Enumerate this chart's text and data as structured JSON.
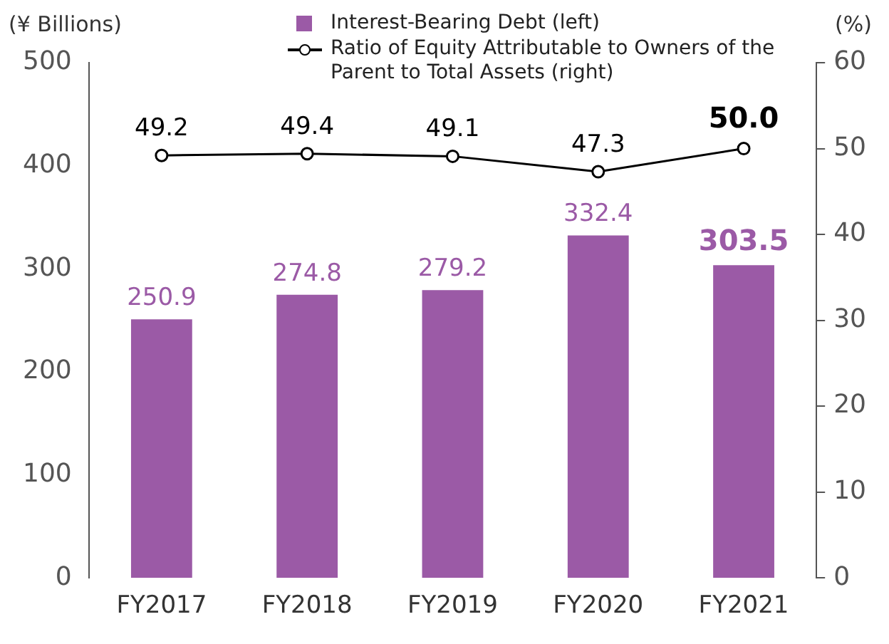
{
  "chart_data": {
    "type": "bar",
    "ylabel": "(¥ Billions)",
    "y2label": "(%)",
    "categories": [
      "FY2017",
      "FY2018",
      "FY2019",
      "FY2020",
      "FY2021"
    ],
    "series": [
      {
        "name": "Interest-Bearing Debt (left)",
        "color": "#9b5aa6",
        "values": [
          250.9,
          274.8,
          279.2,
          332.4,
          303.5
        ],
        "value_labels": [
          "250.9",
          "274.8",
          "279.2",
          "332.4",
          "303.5"
        ]
      },
      {
        "name": "Ratio of Equity Attributable to Owners of the Parent to Total Assets (right)",
        "type": "line",
        "axis": "y2",
        "color": "#000000",
        "values": [
          49.2,
          49.4,
          49.1,
          47.3,
          50.0
        ],
        "value_labels": [
          "49.2",
          "49.4",
          "49.1",
          "47.3",
          "50.0"
        ]
      }
    ],
    "ylim": [
      0,
      500
    ],
    "yticks": [
      0,
      100,
      200,
      300,
      400,
      500
    ],
    "y2lim": [
      0,
      60
    ],
    "y2ticks": [
      0,
      10,
      20,
      30,
      40,
      50,
      60
    ],
    "legend": "top",
    "marker": "circle",
    "grid": false
  }
}
